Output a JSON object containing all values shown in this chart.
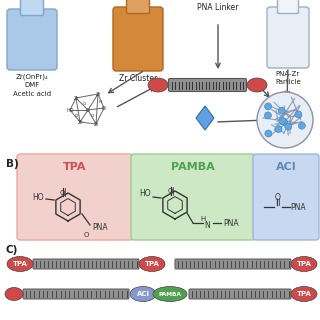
{
  "bg_color": "#ffffff",
  "section_B_label": "B)",
  "section_C_label": "C)",
  "tpa_label": "TPA",
  "pamba_label": "PAMBA",
  "aci_label": "ACI",
  "tpa_box_color": "#f2d0cc",
  "tpa_box_edge": "#e8a8a0",
  "pamba_box_color": "#cce8c4",
  "pamba_box_edge": "#a0cc90",
  "aci_box_color": "#c8d8f0",
  "aci_box_edge": "#a0b8d8",
  "tpa_title_color": "#c85050",
  "pamba_title_color": "#50a050",
  "aci_title_color": "#6088bb",
  "pna_linker_label": "PNA Linker",
  "zr_cluster_label": "Zr Cluster",
  "pna_zr_label": "PNA-Zr\nParticle",
  "reagents_label": "Zr(OnPr)₄\nDMF\nAcetic acid",
  "tpa_color": "#d04848",
  "tpa_text_color": "#ffffff",
  "aci_color": "#8898cc",
  "aci_text_color": "#ffffff",
  "pamba_color": "#50a050",
  "pamba_text_color": "#ffffff",
  "vial1_color": "#aac8e8",
  "vial1_neck": "#c0d8f0",
  "vial1_edge": "#80a8c8",
  "vial2_color": "#d4883a",
  "vial2_neck": "#dda060",
  "vial2_edge": "#b06820",
  "vial3_color": "#e8eef5",
  "vial3_neck": "#f0f4f8",
  "vial3_edge": "#a0b0c0",
  "arrow_color": "#555555",
  "struct_color": "#333333",
  "rod_fill": "#909090",
  "rod_edge": "#555555",
  "diamond_fill": "#60a0e0",
  "diamond_edge": "#3070b0",
  "np_fill": "#e8eef5",
  "np_edge": "#9090a0",
  "np_line_color": "#8090b0",
  "np_dot_color": "#60a8e0"
}
